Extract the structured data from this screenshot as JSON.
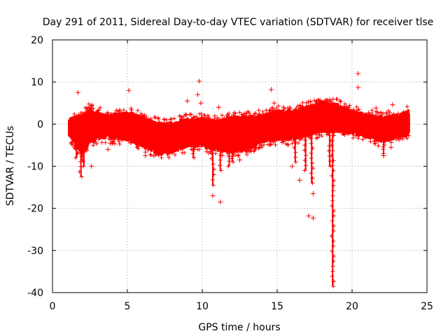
{
  "chart_data": {
    "type": "scatter",
    "title": "Day 291 of 2011, Sidereal Day-to-day VTEC variation (SDTVAR) for receiver tlse",
    "xlabel": "GPS time / hours",
    "ylabel": "SDTVAR / TECUs",
    "xlim": [
      0,
      25
    ],
    "ylim": [
      -40,
      20
    ],
    "x_ticks": [
      0,
      5,
      10,
      15,
      20,
      25
    ],
    "y_ticks": [
      -40,
      -30,
      -20,
      -10,
      0,
      10,
      20
    ],
    "x_tick_labels": [
      "0",
      "5",
      "10",
      "15",
      "20",
      "25"
    ],
    "y_tick_labels": [
      "-40",
      "-30",
      "-20",
      "-10",
      "0",
      "10",
      "20"
    ],
    "grid": true,
    "marker": "+",
    "series_color": "#ff0000",
    "band_envelope": {
      "x": [
        1.1,
        2.0,
        2.5,
        3.5,
        5.0,
        6.0,
        7.0,
        8.0,
        9.0,
        10.0,
        11.0,
        12.0,
        13.0,
        14.0,
        15.0,
        16.0,
        17.0,
        18.0,
        19.0,
        20.0,
        21.0,
        22.0,
        23.0,
        23.8
      ],
      "upper": [
        1.0,
        2.0,
        3.5,
        2.0,
        2.5,
        1.5,
        0.0,
        0.0,
        1.0,
        1.0,
        0.5,
        1.5,
        1.5,
        2.0,
        3.0,
        3.0,
        4.0,
        5.0,
        4.5,
        3.0,
        2.0,
        1.5,
        2.0,
        3.0
      ],
      "lower": [
        -2.5,
        -7.0,
        -4.0,
        -3.0,
        -3.5,
        -5.0,
        -7.0,
        -6.5,
        -5.0,
        -5.0,
        -6.0,
        -6.5,
        -6.0,
        -4.0,
        -3.5,
        -3.5,
        -2.5,
        -1.5,
        -1.5,
        -2.0,
        -3.0,
        -4.0,
        -3.0,
        -2.5
      ]
    },
    "spikes": [
      {
        "x": 1.6,
        "y_min": -8.0
      },
      {
        "x": 1.9,
        "y_min": -12.5
      },
      {
        "x": 2.1,
        "y_min": -10.0
      },
      {
        "x": 9.4,
        "y_min": -8.0
      },
      {
        "x": 10.7,
        "y_min": -14.5
      },
      {
        "x": 11.2,
        "y_min": -11.0
      },
      {
        "x": 11.8,
        "y_min": -10.0
      },
      {
        "x": 12.0,
        "y_min": -9.0
      },
      {
        "x": 16.2,
        "y_min": -9.0
      },
      {
        "x": 16.9,
        "y_min": -11.0
      },
      {
        "x": 17.3,
        "y_min": -14.0
      },
      {
        "x": 18.5,
        "y_min": -10.0
      },
      {
        "x": 18.7,
        "y_min": -38.5
      },
      {
        "x": 22.1,
        "y_min": -7.0
      }
    ],
    "outliers": [
      {
        "x": 1.7,
        "y": 7.5
      },
      {
        "x": 5.1,
        "y": 8.0
      },
      {
        "x": 9.8,
        "y": 10.2
      },
      {
        "x": 9.7,
        "y": 7.0
      },
      {
        "x": 9.0,
        "y": 5.5
      },
      {
        "x": 9.9,
        "y": 5.0
      },
      {
        "x": 11.1,
        "y": 4.0
      },
      {
        "x": 14.6,
        "y": 8.2
      },
      {
        "x": 14.8,
        "y": 5.0
      },
      {
        "x": 20.4,
        "y": 12.0
      },
      {
        "x": 20.4,
        "y": 8.7
      },
      {
        "x": 21.6,
        "y": 3.8
      },
      {
        "x": 22.7,
        "y": 4.6
      },
      {
        "x": 11.2,
        "y": -18.5
      },
      {
        "x": 10.7,
        "y": -17.0
      },
      {
        "x": 16.5,
        "y": -13.3
      },
      {
        "x": 17.4,
        "y": -16.5
      },
      {
        "x": 17.1,
        "y": -21.8
      },
      {
        "x": 17.4,
        "y": -22.3
      },
      {
        "x": 16.0,
        "y": -10.0
      },
      {
        "x": 3.7,
        "y": -6.0
      },
      {
        "x": 2.6,
        "y": -10.0
      },
      {
        "x": 6.2,
        "y": -7.5
      },
      {
        "x": 22.1,
        "y": -7.5
      },
      {
        "x": 22.6,
        "y": -5.5
      },
      {
        "x": 23.4,
        "y": -3.0
      },
      {
        "x": 12.5,
        "y": -8.5
      }
    ],
    "point_count_approx": 2400
  }
}
